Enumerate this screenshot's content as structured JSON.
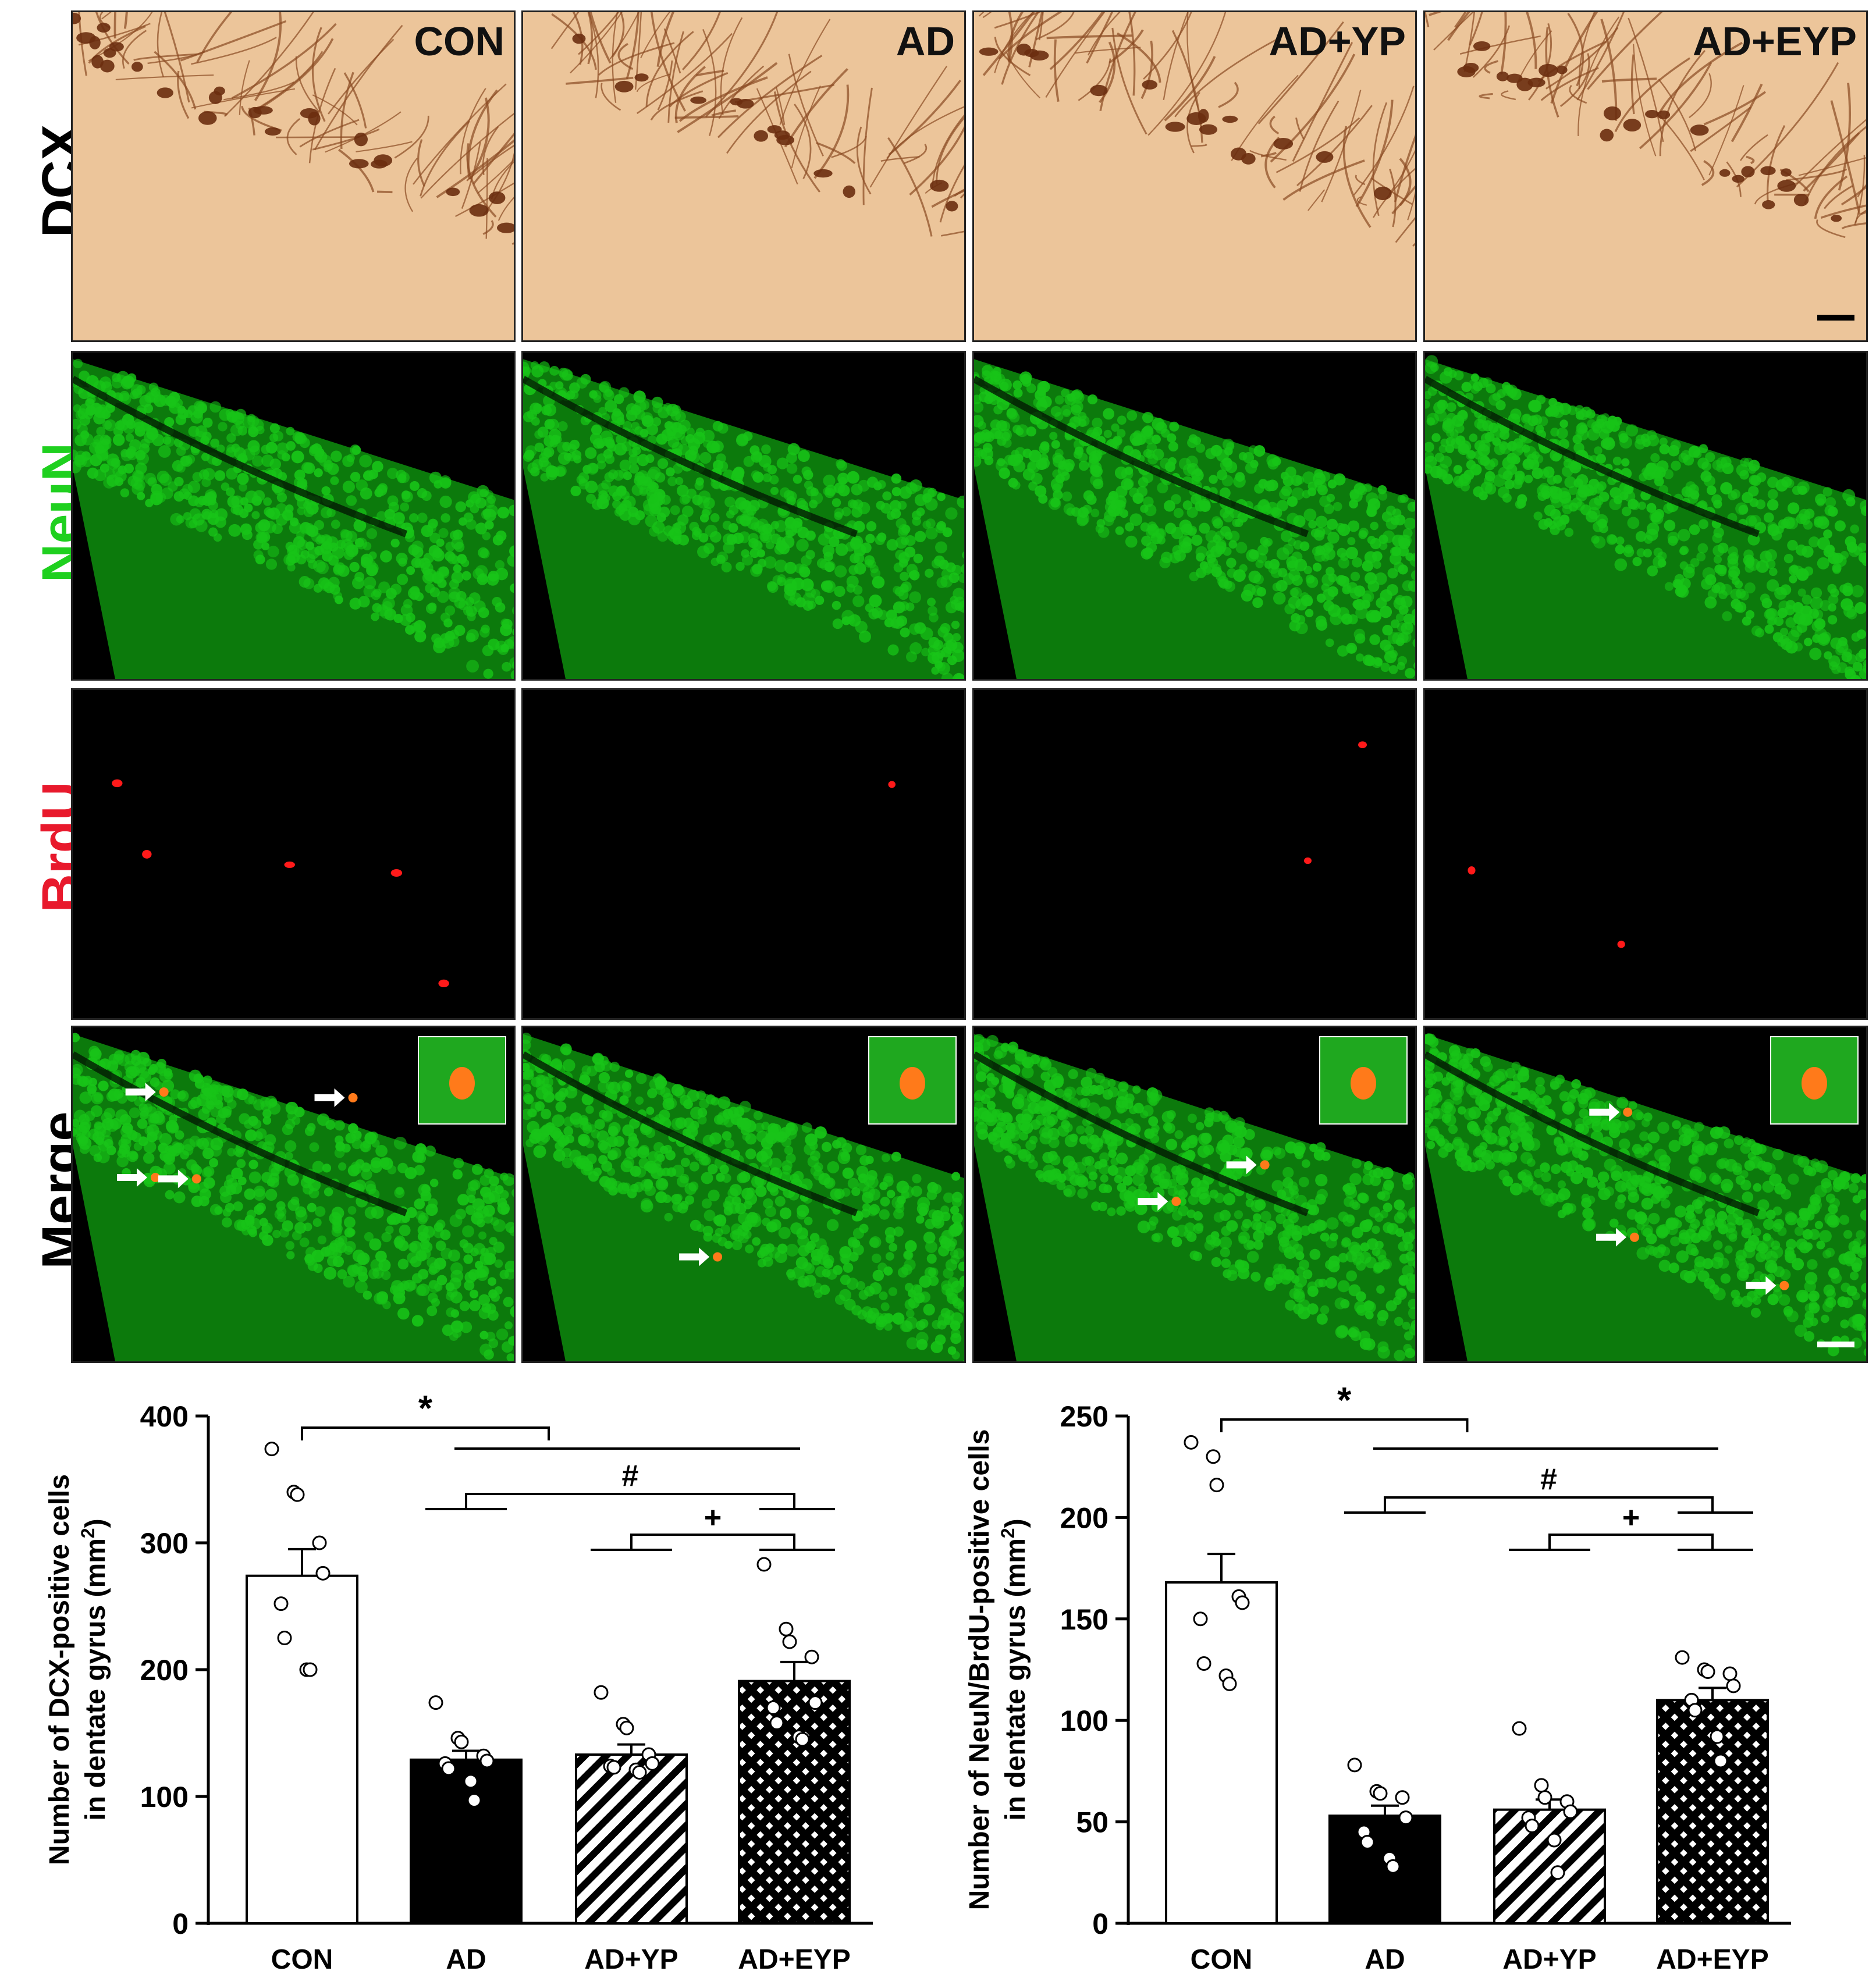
{
  "figure": {
    "row_labels": [
      {
        "text": "DCX",
        "color": "#000000"
      },
      {
        "text": "NeuN",
        "color": "#1fd01f"
      },
      {
        "text": "BrdU",
        "color": "#e8192c"
      },
      {
        "text": "Merge",
        "color": "#000000"
      }
    ],
    "groups": [
      "CON",
      "AD",
      "AD+YP",
      "AD+EYP"
    ],
    "colors": {
      "dcx_bg": "#f2cfa6",
      "dcx_cell": "#6b2d10",
      "neun": "#18c418",
      "brdu": "#ff1a1a",
      "merge_cell": "#ff7a1a"
    }
  },
  "chart_data": [
    {
      "type": "bar",
      "categories": [
        "CON",
        "AD",
        "AD+YP",
        "AD+EYP"
      ],
      "values": [
        274,
        129,
        133,
        191
      ],
      "errors": [
        21,
        7,
        8,
        15
      ],
      "points": [
        [
          374,
          340,
          338,
          300,
          276,
          252,
          225,
          200,
          200
        ],
        [
          174,
          146,
          143,
          132,
          128,
          126,
          122,
          112,
          97
        ],
        [
          182,
          157,
          154,
          133,
          126,
          124,
          123,
          121,
          119
        ],
        [
          283,
          232,
          222,
          210,
          174,
          170,
          158,
          147,
          145
        ]
      ],
      "fills": [
        "white",
        "black",
        "diagonal-hatch",
        "cross-hatch"
      ],
      "ylabel_line1": "Number of DCX-positive cells",
      "ylabel_line2": "in dentate gyrus (mm",
      "ylabel_sup": "2",
      "ylabel_end": ")",
      "yticks": [
        0,
        100,
        200,
        300,
        400
      ],
      "ylim": [
        0,
        400
      ],
      "significance": [
        "*",
        "#",
        "+"
      ]
    },
    {
      "type": "bar",
      "categories": [
        "CON",
        "AD",
        "AD+YP",
        "AD+EYP"
      ],
      "values": [
        168,
        53,
        56,
        110
      ],
      "errors": [
        14,
        5,
        5,
        6
      ],
      "points": [
        [
          237,
          230,
          216,
          161,
          158,
          150,
          128,
          122,
          118
        ],
        [
          78,
          65,
          64,
          62,
          52,
          45,
          40,
          32,
          28
        ],
        [
          96,
          68,
          62,
          60,
          55,
          52,
          48,
          41,
          25
        ],
        [
          131,
          125,
          124,
          123,
          117,
          110,
          105,
          92,
          80
        ]
      ],
      "fills": [
        "white",
        "black",
        "diagonal-hatch",
        "cross-hatch"
      ],
      "ylabel_line1": "Number of NeuN/BrdU-positive cells",
      "ylabel_line2": "in dentate gyrus (mm",
      "ylabel_sup": "2",
      "ylabel_end": ")",
      "yticks": [
        0,
        50,
        100,
        150,
        200,
        250
      ],
      "ylim": [
        0,
        250
      ],
      "significance": [
        "*",
        "#",
        "+"
      ]
    }
  ]
}
